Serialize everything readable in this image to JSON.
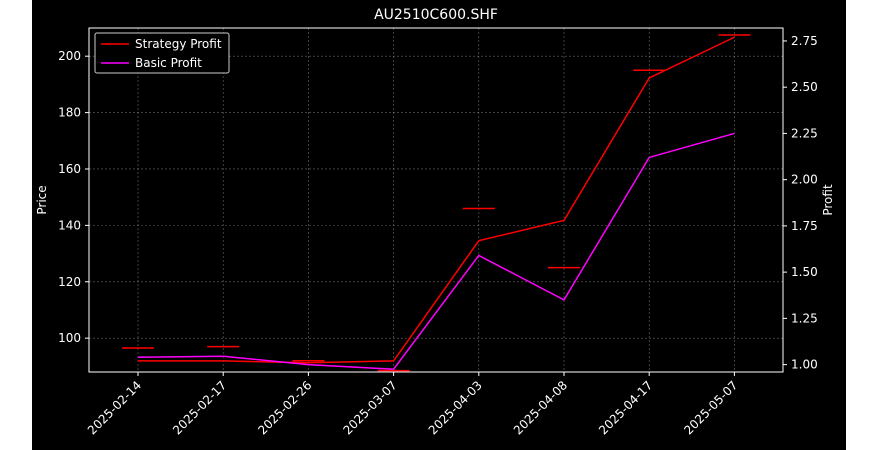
{
  "chart_data": {
    "type": "line",
    "title": "AU2510C600.SHF",
    "categories": [
      "2025-02-14",
      "2025-02-17",
      "2025-02-26",
      "2025-03-07",
      "2025-04-03",
      "2025-04-08",
      "2025-04-17",
      "2025-05-07"
    ],
    "ylabel_left": "Price",
    "ylabel_right": "Profit",
    "ylim_left": [
      88,
      210
    ],
    "yticks_left": [
      100,
      120,
      140,
      160,
      180,
      200
    ],
    "ylim_right": [
      0.96,
      2.82
    ],
    "yticks_right": [
      "1.00",
      "1.25",
      "1.50",
      "1.75",
      "2.00",
      "2.25",
      "2.50",
      "2.75"
    ],
    "grid": true,
    "legend_position": "top-left",
    "price_markers": {
      "color": "#ff0000",
      "axis": "left",
      "values": [
        96.5,
        97,
        92,
        88.5,
        146,
        125,
        195,
        207.5
      ]
    },
    "series": [
      {
        "name": "Strategy Profit",
        "axis": "right",
        "color": "#ff0000",
        "values": [
          1.02,
          1.02,
          1.01,
          1.02,
          1.67,
          1.78,
          2.55,
          2.77
        ]
      },
      {
        "name": "Basic Profit",
        "axis": "right",
        "color": "#ff00ff",
        "values": [
          1.04,
          1.045,
          1.0,
          0.975,
          1.59,
          1.35,
          2.12,
          2.25
        ]
      }
    ]
  }
}
